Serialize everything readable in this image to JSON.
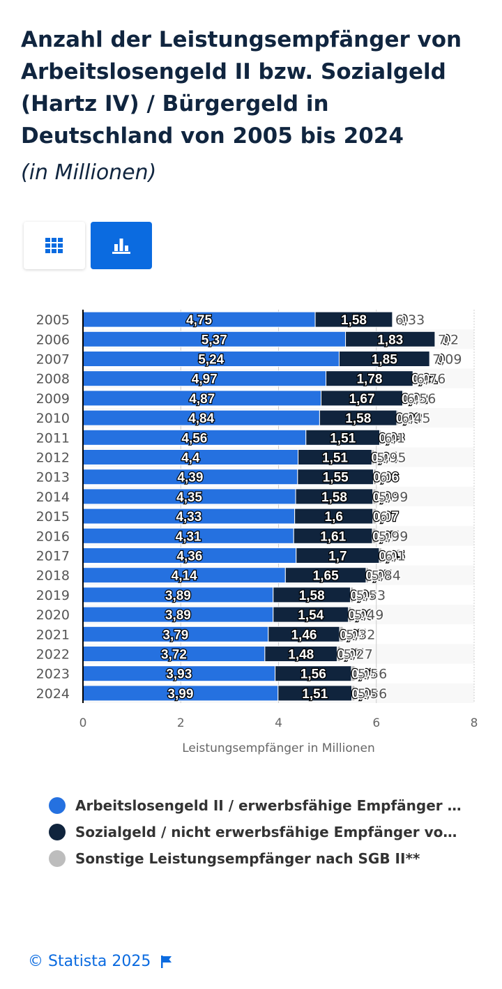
{
  "header": {
    "title": "Anzahl der Leistungsempfänger von Arbeitslosengeld II bzw. Sozialgeld (Hartz IV) / Bürgergeld in Deutschland von 2005 bis 2024",
    "subtitle": "(in Millionen)"
  },
  "view_toggle": {
    "table_icon": "table-grid-icon",
    "chart_icon": "bar-chart-icon",
    "active": "chart"
  },
  "colors": {
    "series1": "#2571e0",
    "series2": "#10243d",
    "series3": "#bdbdbd",
    "accent": "#0b6be0",
    "title": "#10253f"
  },
  "chart_data": {
    "type": "bar",
    "orientation": "horizontal",
    "stacked": true,
    "categories": [
      "2005",
      "2006",
      "2007",
      "2008",
      "2009",
      "2010",
      "2011",
      "2012",
      "2013",
      "2014",
      "2015",
      "2016",
      "2017",
      "2018",
      "2019",
      "2020",
      "2021",
      "2022",
      "2023",
      "2024"
    ],
    "series": [
      {
        "name": "Arbeitslosengeld II / erwerbsfähige Empfänger vo...",
        "values": [
          4.75,
          5.37,
          5.24,
          4.97,
          4.87,
          4.84,
          4.56,
          4.4,
          4.39,
          4.35,
          4.33,
          4.31,
          4.36,
          4.14,
          3.89,
          3.89,
          3.79,
          3.72,
          3.93,
          3.99
        ],
        "labels": [
          "4,75",
          "5,37",
          "5,24",
          "4,97",
          "4,87",
          "4,84",
          "4,56",
          "4,4",
          "4,39",
          "4,35",
          "4,33",
          "4,31",
          "4,36",
          "4,14",
          "3,89",
          "3,89",
          "3,79",
          "3,72",
          "3,93",
          "3,99"
        ]
      },
      {
        "name": "Sozialgeld / nicht erwerbsfähige Empfänger von B...",
        "values": [
          1.58,
          1.83,
          1.85,
          1.78,
          1.67,
          1.58,
          1.51,
          1.51,
          1.55,
          1.58,
          1.6,
          1.61,
          1.7,
          1.65,
          1.58,
          1.54,
          1.46,
          1.48,
          1.56,
          1.51
        ],
        "labels": [
          "1,58",
          "1,83",
          "1,85",
          "1,78",
          "1,67",
          "1,58",
          "1,51",
          "1,51",
          "1,55",
          "1,58",
          "1,6",
          "1,61",
          "1,7",
          "1,65",
          "1,58",
          "1,54",
          "1,46",
          "1,48",
          "1,56",
          "1,51"
        ]
      },
      {
        "name": "Sonstige Leistungsempfänger nach SGB II**",
        "values": [
          0,
          0,
          0,
          0.01,
          0.02,
          0.03,
          0.03,
          0.04,
          0.06,
          0.06,
          0.07,
          0.07,
          0.05,
          0.05,
          0.06,
          0.06,
          0.07,
          0.07,
          0.07,
          0.06
        ],
        "labels": [
          "0",
          "0",
          "0",
          "0,01",
          "0,02",
          "0,03",
          "0,03",
          "0,04",
          "0,06",
          "0,06",
          "0,07",
          "0,07",
          "0,05",
          "0,05",
          "0,06",
          "0,06",
          "0,07",
          "0,07",
          "0,07",
          "0,06"
        ]
      }
    ],
    "totals": [
      "6,33",
      "7,2",
      "7,09",
      "6,76",
      "6,56",
      "6,45",
      "6,1",
      "5,95",
      "6",
      "5,99",
      "6",
      "5,99",
      "6,1",
      "5,84",
      "5,53",
      "5,49",
      "5,32",
      "5,27",
      "5,56",
      "5,56"
    ],
    "xlabel": "Leistungsempfänger in Millionen",
    "xlim": [
      0,
      8
    ],
    "xticks": [
      "0",
      "2",
      "4",
      "6",
      "8"
    ],
    "legend_position": "bottom"
  },
  "legend": {
    "items": [
      {
        "label": "Arbeitslosengeld II / erwerbsfähige Empfänger vo...",
        "color": "#2571e0"
      },
      {
        "label": "Sozialgeld / nicht erwerbsfähige Empfänger von B...",
        "color": "#10243d"
      },
      {
        "label": "Sonstige Leistungsempfänger nach SGB II**",
        "color": "#bdbdbd"
      }
    ]
  },
  "footer": {
    "copyright": "© Statista 2025",
    "flag_icon": "flag-icon"
  }
}
